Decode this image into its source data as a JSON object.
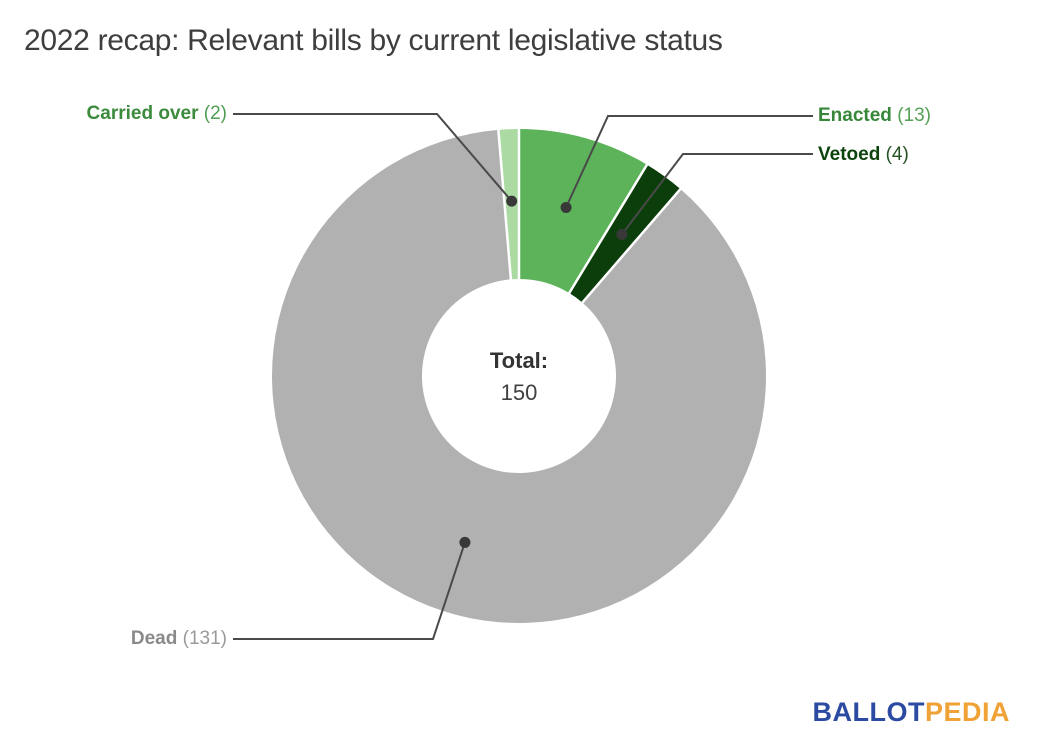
{
  "title": "2022 recap: Relevant bills by current legislative status",
  "chart_data": {
    "type": "pie",
    "donut": true,
    "title": "2022 recap: Relevant bills by current legislative status",
    "total": 150,
    "center_label": {
      "title": "Total:",
      "value": "150"
    },
    "legend_position": "outside-callouts",
    "slices": [
      {
        "label": "Enacted",
        "value": 13,
        "display_value": "(13)",
        "color": "#5cb35a",
        "label_color": "#37873a",
        "value_color": "#55a055"
      },
      {
        "label": "Vetoed",
        "value": 4,
        "display_value": "(4)",
        "color": "#0b3e0b",
        "label_color": "#0d430d",
        "value_color": "#235323"
      },
      {
        "label": "Dead",
        "value": 131,
        "display_value": "(131)",
        "color": "#b1b1b1",
        "label_color": "#8a8a8a",
        "value_color": "#9a9a9a"
      },
      {
        "label": "Carried over",
        "value": 2,
        "display_value": "(2)",
        "color": "#abdba3",
        "label_color": "#3c8b3c",
        "value_color": "#4f9d52"
      }
    ],
    "callout_line_color": "#4a4a4a",
    "callout_dot_color": "#383838"
  },
  "branding": {
    "logo_part1": "BALLOT",
    "logo_part2": "PEDIA",
    "logo_color1": "#2b4aa2",
    "logo_color2": "#f0a236"
  }
}
